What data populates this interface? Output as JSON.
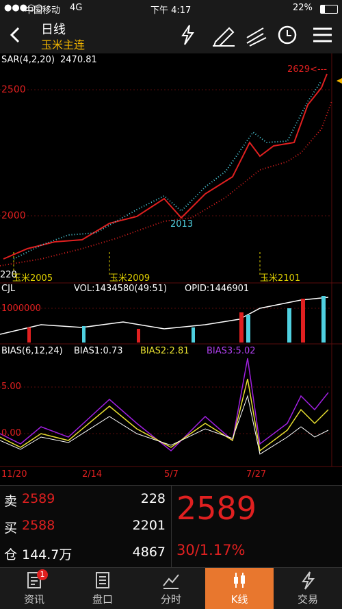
{
  "status": {
    "carrier": "中国移动",
    "network": "4G",
    "time": "下午 4:17",
    "battery": "22%"
  },
  "header": {
    "title": "日线",
    "subtitle": "玉米主连"
  },
  "main_chart": {
    "indicator": "SAR(4,2,20)",
    "indicator_value": "2470.81",
    "price_labels": [
      "2500",
      "2000"
    ],
    "last_label": "2629<---",
    "low_label": "2013",
    "left_label": "220",
    "contracts": [
      "玉米2005",
      "玉米2009",
      "玉米2101"
    ]
  },
  "volume": {
    "name": "CJL",
    "vol": "VOL:1434580(49:51)",
    "opid": "OPID:1446901",
    "axis_label": "1000000"
  },
  "bias": {
    "name": "BIAS(6,12,24)",
    "bias1": "BIAS1:0.73",
    "bias2": "BIAS2:2.81",
    "bias3": "BIAS3:5.02",
    "axis_labels": [
      "5.00",
      "0.00"
    ]
  },
  "dates": [
    "11/20",
    "2/14",
    "5/7",
    "7/27"
  ],
  "order_book": {
    "rows": [
      {
        "label": "卖",
        "price": "2589",
        "qty": "228"
      },
      {
        "label": "买",
        "price": "2588",
        "qty": "2201"
      },
      {
        "label": "仓",
        "price": "144.7万",
        "qty": "4867"
      }
    ],
    "last": "2589",
    "change": "30/1.17%"
  },
  "nav": {
    "items": [
      "资讯",
      "盘口",
      "分时",
      "K线",
      "交易"
    ],
    "badge": "1"
  }
}
